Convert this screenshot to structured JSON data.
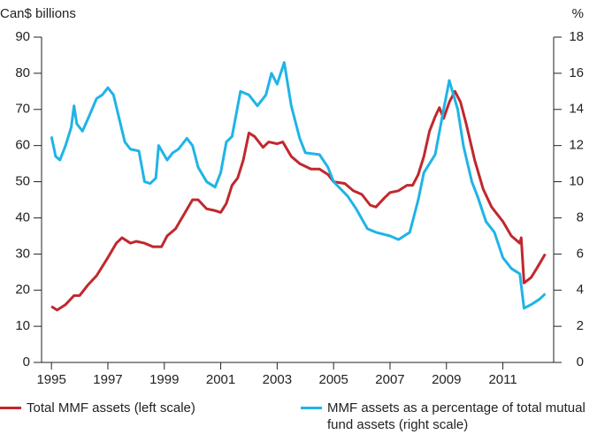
{
  "chart_data": {
    "type": "line",
    "y_label": "Can$ billions",
    "y2_label": "%",
    "xlim": [
      1994.65,
      2012.8
    ],
    "xticks": [
      1995,
      1997,
      1999,
      2001,
      2003,
      2005,
      2007,
      2009,
      2011
    ],
    "ylim": [
      0,
      90
    ],
    "yticks": [
      0,
      10,
      20,
      30,
      40,
      50,
      60,
      70,
      80,
      90
    ],
    "y2lim": [
      0,
      18
    ],
    "y2ticks": [
      0,
      2,
      4,
      6,
      8,
      10,
      12,
      14,
      16,
      18
    ],
    "series": [
      {
        "name": "Total MMF assets (left scale)",
        "color": "#c0282d",
        "axis": "y",
        "x": [
          1995.0,
          1995.2,
          1995.5,
          1995.8,
          1996.0,
          1996.3,
          1996.6,
          1997.0,
          1997.3,
          1997.5,
          1997.8,
          1998.0,
          1998.3,
          1998.6,
          1998.9,
          1999.1,
          1999.4,
          1999.7,
          2000.0,
          2000.2,
          2000.5,
          2000.8,
          2001.0,
          2001.2,
          2001.4,
          2001.6,
          2001.8,
          2002.0,
          2002.2,
          2002.5,
          2002.7,
          2003.0,
          2003.2,
          2003.5,
          2003.8,
          2004.2,
          2004.5,
          2004.8,
          2005.0,
          2005.4,
          2005.7,
          2006.0,
          2006.3,
          2006.5,
          2006.8,
          2007.0,
          2007.3,
          2007.6,
          2007.8,
          2008.0,
          2008.2,
          2008.4,
          2008.6,
          2008.75,
          2008.9,
          2009.1,
          2009.3,
          2009.5,
          2009.7,
          2010.0,
          2010.3,
          2010.6,
          2011.0,
          2011.3,
          2011.6,
          2011.65,
          2011.75,
          2012.0,
          2012.2,
          2012.5
        ],
        "values": [
          15.5,
          14.5,
          16,
          18.5,
          18.5,
          21.5,
          24,
          29,
          33,
          34.5,
          33,
          33.5,
          33,
          32,
          32,
          35,
          37,
          41,
          45,
          45,
          42.5,
          42,
          41.5,
          44,
          49,
          51,
          56,
          63.5,
          62.5,
          59.5,
          61,
          60.5,
          61,
          57,
          55,
          53.5,
          53.5,
          52,
          50,
          49.5,
          47.5,
          46.5,
          43.5,
          43,
          45.5,
          47,
          47.5,
          49,
          49,
          52,
          57,
          64,
          68,
          70.5,
          67.5,
          72,
          75,
          72,
          66,
          56,
          48,
          43,
          39,
          35,
          33,
          34.5,
          22,
          23.5,
          26,
          30
        ]
      },
      {
        "name": "MMF assets as a percentage of total mutual fund assets (right scale)",
        "color": "#1fb4e6",
        "axis": "y2",
        "x": [
          1995.0,
          1995.15,
          1995.3,
          1995.5,
          1995.7,
          1995.8,
          1995.9,
          1996.1,
          1996.3,
          1996.6,
          1996.8,
          1997.0,
          1997.2,
          1997.4,
          1997.6,
          1997.8,
          1998.1,
          1998.3,
          1998.5,
          1998.7,
          1998.8,
          1999.1,
          1999.3,
          1999.5,
          1999.8,
          2000.0,
          2000.2,
          2000.5,
          2000.8,
          2001.0,
          2001.2,
          2001.4,
          2001.7,
          2002.0,
          2002.3,
          2002.6,
          2002.8,
          2003.0,
          2003.25,
          2003.5,
          2003.8,
          2004.0,
          2004.5,
          2004.8,
          2005.0,
          2005.5,
          2005.8,
          2006.2,
          2006.5,
          2007.0,
          2007.3,
          2007.7,
          2008.0,
          2008.2,
          2008.6,
          2008.9,
          2009.1,
          2009.4,
          2009.6,
          2009.9,
          2010.1,
          2010.4,
          2010.7,
          2011.0,
          2011.3,
          2011.6,
          2011.75,
          2012.0,
          2012.3,
          2012.5
        ],
        "values": [
          12.5,
          11.4,
          11.2,
          12.0,
          13.0,
          14.2,
          13.2,
          12.8,
          13.5,
          14.6,
          14.8,
          15.2,
          14.8,
          13.5,
          12.2,
          11.8,
          11.7,
          10.0,
          9.9,
          10.2,
          12.0,
          11.2,
          11.6,
          11.8,
          12.4,
          12.0,
          10.8,
          10.0,
          9.7,
          10.5,
          12.2,
          12.5,
          15.0,
          14.8,
          14.2,
          14.8,
          16.0,
          15.4,
          16.6,
          14.2,
          12.4,
          11.6,
          11.5,
          10.8,
          10.0,
          9.2,
          8.5,
          7.4,
          7.2,
          7.0,
          6.8,
          7.2,
          9.0,
          10.5,
          11.5,
          14.0,
          15.6,
          14.0,
          12.0,
          10.0,
          9.2,
          7.8,
          7.2,
          5.8,
          5.2,
          4.9,
          3.0,
          3.2,
          3.5,
          3.8
        ]
      }
    ],
    "legend": "bottom"
  }
}
